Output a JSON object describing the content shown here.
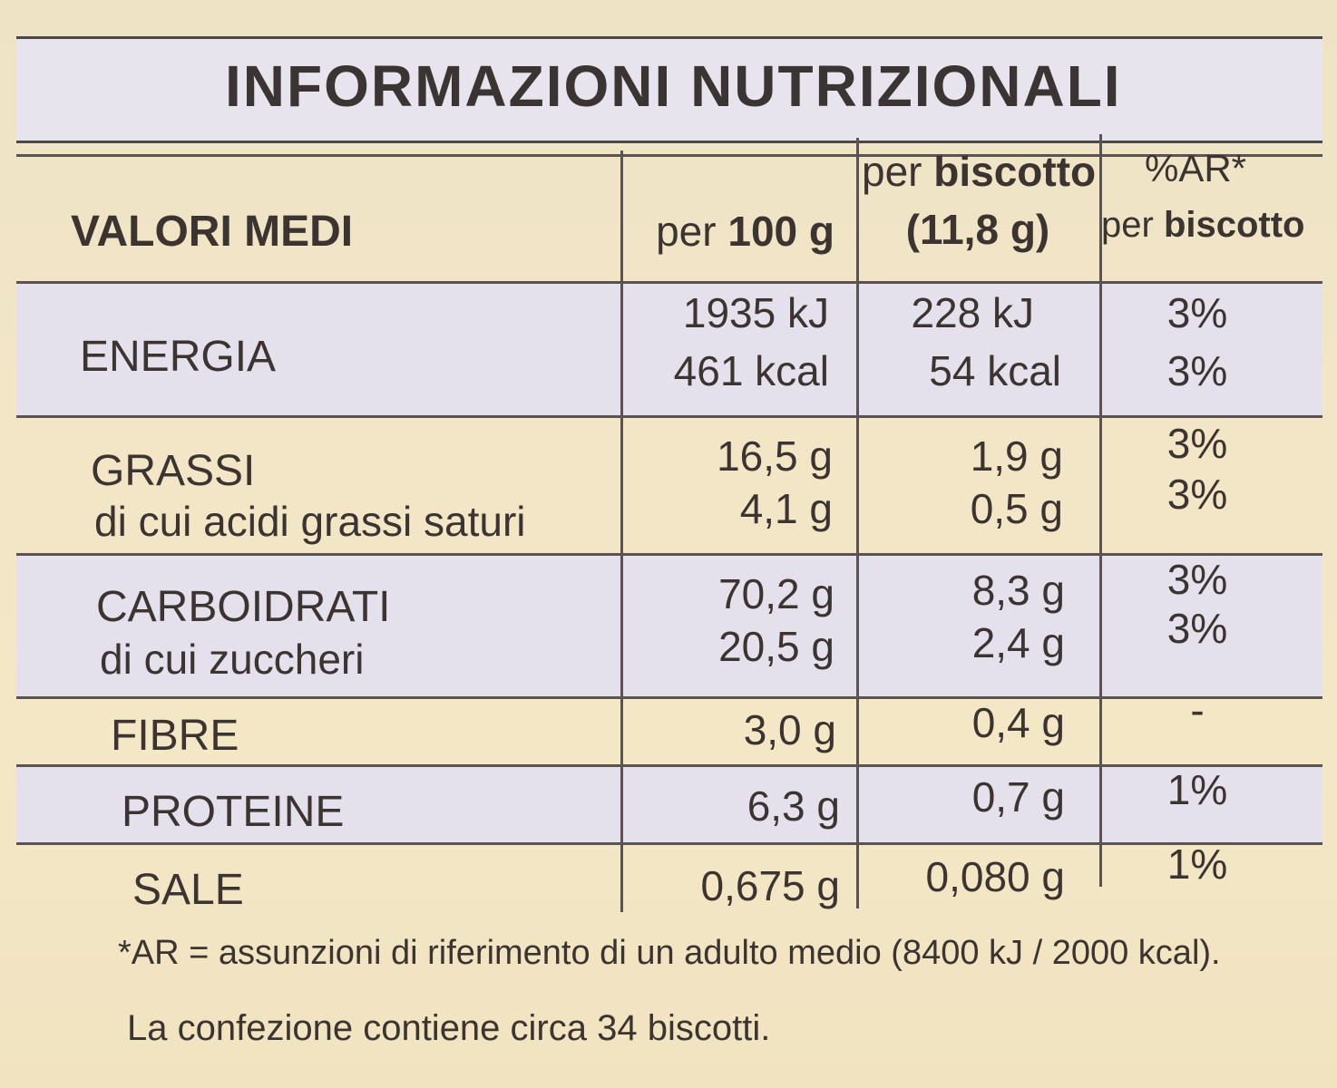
{
  "title": "INFORMAZIONI NUTRIZIONALI",
  "header": {
    "label": "VALORI MEDI",
    "col1_prefix": "per ",
    "col1_bold": "100 g",
    "col2_prefix": "per ",
    "col2_bold": "biscotto",
    "col2_line2": "(11,8 g)",
    "col3_line1": "%AR*",
    "col3_prefix": "per ",
    "col3_bold": "biscotto"
  },
  "rows": [
    {
      "label": "ENERGIA",
      "sub": "",
      "v100": [
        "1935 kJ",
        "461 kcal"
      ],
      "vbisc": [
        "228 kJ",
        "54 kcal"
      ],
      "ar": [
        "3%",
        "3%"
      ]
    },
    {
      "label": "GRASSI",
      "sub": "di cui acidi grassi saturi",
      "v100": [
        "16,5 g",
        "4,1 g"
      ],
      "vbisc": [
        "1,9 g",
        "0,5 g"
      ],
      "ar": [
        "3%",
        "3%"
      ]
    },
    {
      "label": "CARBOIDRATI",
      "sub": "di cui zuccheri",
      "v100": [
        "70,2 g",
        "20,5 g"
      ],
      "vbisc": [
        "8,3 g",
        "2,4 g"
      ],
      "ar": [
        "3%",
        "3%"
      ]
    },
    {
      "label": "FIBRE",
      "v100": "3,0 g",
      "vbisc": "0,4 g",
      "ar": "-"
    },
    {
      "label": "PROTEINE",
      "v100": "6,3 g",
      "vbisc": "0,7 g",
      "ar": "1%"
    },
    {
      "label": "SALE",
      "v100": "0,675 g",
      "vbisc": "0,080 g",
      "ar": "1%"
    }
  ],
  "footnote": {
    "line1": "*AR = assunzioni di riferimento di un adulto medio (8400 kJ / 2000 kcal).",
    "line2": "La confezione contiene circa 34 biscotti."
  }
}
